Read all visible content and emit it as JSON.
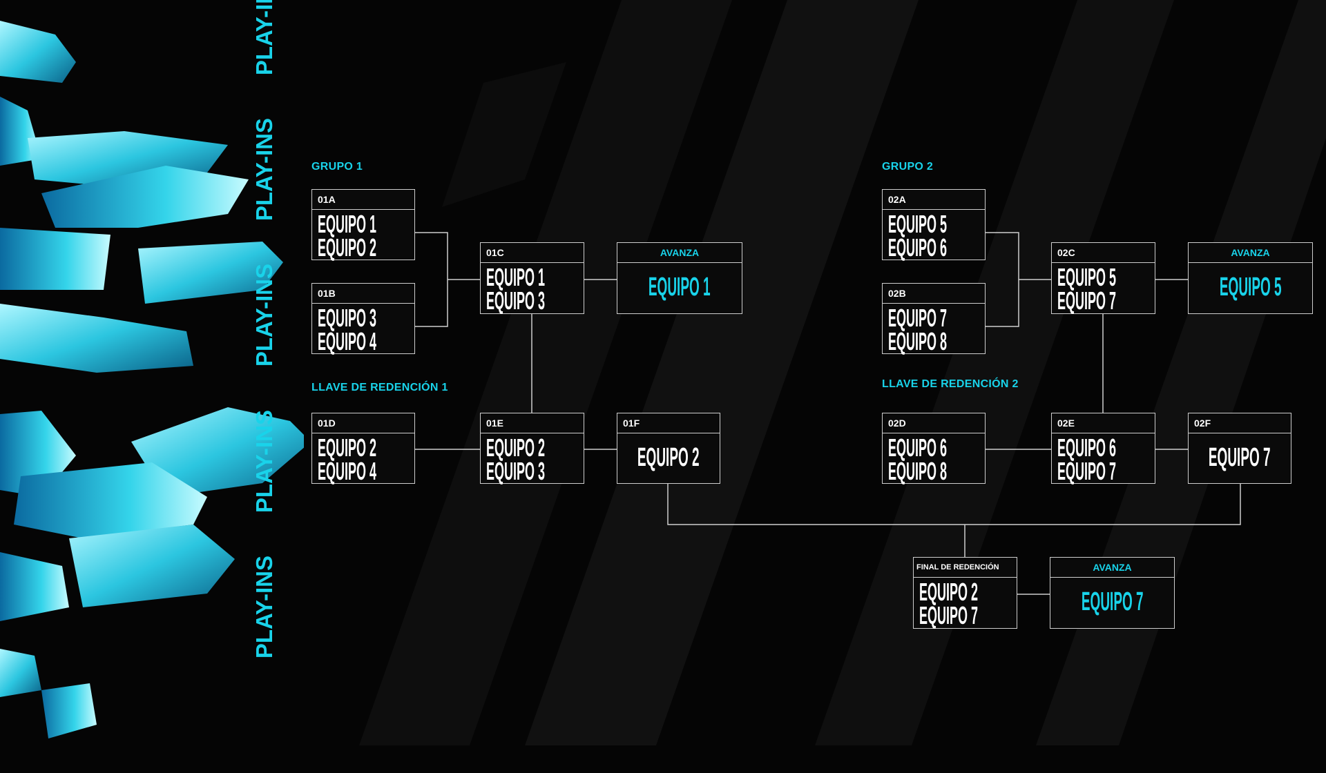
{
  "side_text": [
    "PLAY-INS",
    "PLAY-INS",
    "PLAY-INS",
    "PLAY-INS",
    "PLAY-INS"
  ],
  "colors": {
    "accent": "#19d3ea",
    "background": "#050505",
    "lines": "#cfcfcf"
  },
  "group1": {
    "title": "GRUPO 1",
    "redemption_title": "LLAVE DE REDENCIÓN 1",
    "m01a": {
      "id": "01A",
      "teams": [
        "EQUIPO 1",
        "EQUIPO 2"
      ]
    },
    "m01b": {
      "id": "01B",
      "teams": [
        "EQUIPO 3",
        "EQUIPO 4"
      ]
    },
    "m01c": {
      "id": "01C",
      "teams": [
        "EQUIPO 1",
        "EQUIPO 3"
      ]
    },
    "advance": {
      "label": "AVANZA",
      "team": "EQUIPO 1"
    },
    "m01d": {
      "id": "01D",
      "teams": [
        "EQUIPO 2",
        "EQUIPO 4"
      ]
    },
    "m01e": {
      "id": "01E",
      "teams": [
        "EQUIPO 2",
        "EQUIPO 3"
      ]
    },
    "m01f": {
      "id": "01F",
      "team": "EQUIPO 2"
    }
  },
  "group2": {
    "title": "GRUPO 2",
    "redemption_title": "LLAVE DE REDENCIÓN 2",
    "m02a": {
      "id": "02A",
      "teams": [
        "EQUIPO 5",
        "EQUIPO 6"
      ]
    },
    "m02b": {
      "id": "02B",
      "teams": [
        "EQUIPO 7",
        "EQUIPO 8"
      ]
    },
    "m02c": {
      "id": "02C",
      "teams": [
        "EQUIPO 5",
        "EQUIPO 7"
      ]
    },
    "advance": {
      "label": "AVANZA",
      "team": "EQUIPO 5"
    },
    "m02d": {
      "id": "02D",
      "teams": [
        "EQUIPO 6",
        "EQUIPO 8"
      ]
    },
    "m02e": {
      "id": "02E",
      "teams": [
        "EQUIPO 6",
        "EQUIPO 7"
      ]
    },
    "m02f": {
      "id": "02F",
      "team": "EQUIPO 7"
    }
  },
  "final": {
    "title": "FINAL DE REDENCIÓN",
    "teams": [
      "EQUIPO 2",
      "EQUIPO 7"
    ],
    "advance": {
      "label": "AVANZA",
      "team": "EQUIPO 7"
    }
  }
}
